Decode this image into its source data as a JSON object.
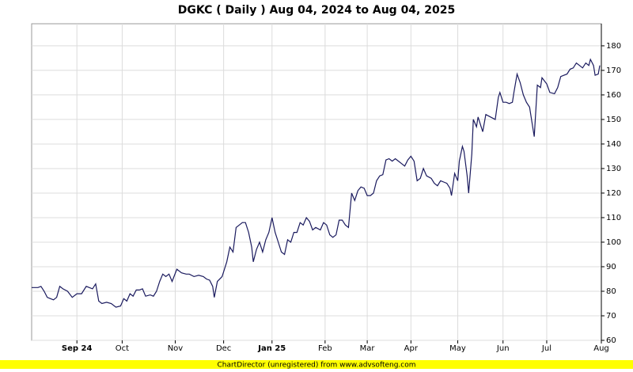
{
  "chart_data": {
    "type": "line",
    "title": "DGKC ( Daily ) Aug 04, 2024 to Aug 04, 2025",
    "footer": "ChartDirector (unregistered) from www.advsofteng.com",
    "xlim": [
      0,
      365
    ],
    "xticks": [
      {
        "value": 29,
        "label": "Sep 24"
      },
      {
        "value": 58,
        "label": "Oct"
      },
      {
        "value": 92,
        "label": "Nov"
      },
      {
        "value": 123,
        "label": "Dec"
      },
      {
        "value": 154,
        "label": "Jan 25"
      },
      {
        "value": 188,
        "label": "Feb"
      },
      {
        "value": 215,
        "label": "Mar"
      },
      {
        "value": 243,
        "label": "Apr"
      },
      {
        "value": 273,
        "label": "May"
      },
      {
        "value": 302,
        "label": "Jun"
      },
      {
        "value": 330,
        "label": "Jul"
      },
      {
        "value": 365,
        "label": "Aug"
      }
    ],
    "ylim": [
      60,
      189
    ],
    "yticks": [
      60,
      70,
      80,
      90,
      100,
      110,
      120,
      130,
      140,
      150,
      160,
      170,
      180
    ],
    "grid": true,
    "series": [
      {
        "color": "#1a1a5e",
        "x": [
          0,
          4,
          6,
          8,
          10,
          12,
          14,
          16,
          18,
          20,
          23,
          26,
          29,
          32,
          35,
          39,
          41,
          43,
          45,
          48,
          51,
          54,
          57,
          59,
          61,
          63,
          65,
          67,
          69,
          71,
          73,
          76,
          78,
          80,
          82,
          84,
          86,
          88,
          90,
          93,
          96,
          99,
          101,
          104,
          107,
          110,
          112,
          114,
          116,
          117,
          119,
          122,
          125,
          127,
          129,
          131,
          133,
          135,
          137,
          139,
          141,
          142,
          144,
          146,
          148,
          150,
          152,
          154,
          156,
          158,
          160,
          162,
          164,
          166,
          168,
          170,
          172,
          174,
          176,
          178,
          180,
          182,
          185,
          187,
          189,
          191,
          193,
          195,
          197,
          199,
          201,
          203,
          205,
          207,
          209,
          211,
          213,
          215,
          217,
          219,
          221,
          223,
          225,
          227,
          229,
          231,
          233,
          235,
          237,
          239,
          241,
          243,
          245,
          247,
          249,
          251,
          253,
          256,
          258,
          260,
          262,
          264,
          266,
          268,
          269,
          271,
          273,
          274,
          276,
          277,
          279,
          280,
          282,
          283,
          285,
          286,
          288,
          289,
          291,
          294,
          297,
          299,
          300,
          302,
          304,
          306,
          308,
          309,
          311,
          313,
          315,
          317,
          319,
          321,
          322,
          324,
          326,
          327,
          330,
          332,
          335,
          337,
          339,
          341,
          343,
          345,
          347,
          349,
          351,
          353,
          355,
          357,
          358,
          360,
          361,
          363,
          364
        ],
        "values": [
          81.5,
          81.5,
          82,
          80,
          77.5,
          77,
          76.5,
          77.5,
          82,
          81,
          80,
          77.5,
          79,
          79,
          82,
          81,
          83,
          76,
          75,
          75.5,
          75,
          73.5,
          74,
          77,
          76,
          79,
          78,
          80.5,
          80.5,
          81,
          78,
          78.5,
          78,
          80,
          84,
          87,
          86,
          87,
          84,
          89,
          87.5,
          87,
          87,
          86,
          86.5,
          86,
          85,
          84.5,
          82,
          77.5,
          84,
          86,
          92,
          98,
          96,
          106,
          107,
          108,
          108,
          104,
          98,
          92,
          97,
          100,
          96,
          101,
          104,
          110,
          104,
          100,
          96,
          95,
          101,
          100,
          104,
          104,
          108,
          107,
          110,
          108.5,
          105,
          106,
          105,
          108,
          107,
          103,
          102,
          103,
          109,
          109,
          107,
          106,
          120,
          117,
          121,
          122.5,
          122,
          119,
          119,
          120,
          125,
          127,
          127.5,
          133.5,
          134,
          133,
          134,
          133,
          132,
          131,
          133.5,
          135,
          133,
          125,
          126,
          130,
          127,
          126,
          124,
          123,
          125,
          124.5,
          124,
          122,
          119,
          128,
          125,
          133,
          139,
          137,
          127,
          120,
          136,
          150,
          147,
          151,
          147,
          145,
          152,
          151,
          150,
          159,
          161,
          157,
          157,
          156.5,
          157,
          161,
          168.5,
          165,
          160,
          157,
          155,
          147,
          143,
          164,
          163,
          167,
          164.5,
          161,
          160.5,
          163,
          167.5,
          168,
          168.5,
          170.5,
          171,
          173,
          172,
          171,
          173,
          172,
          174.5,
          172,
          168,
          168.5,
          172
        ]
      }
    ]
  }
}
